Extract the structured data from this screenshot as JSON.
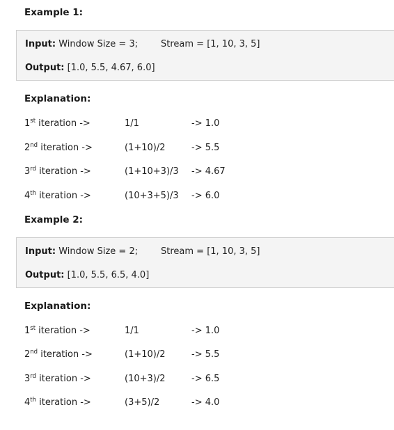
{
  "examples": [
    {
      "title": "Example 1:",
      "input_label": "Input:",
      "input_value": " Window Size = 3;",
      "stream": "Stream = [1, 10, 3, 5]",
      "output_label": "Output:",
      "output_value": " [1.0,   5.5,   4.67,   6.0]",
      "explanation_title": "Explanation:",
      "rows": [
        {
          "ordinal": "1",
          "sup": "st",
          "suffix": " iteration ->",
          "expr": "1/1",
          "result": "-> 1.0"
        },
        {
          "ordinal": "2",
          "sup": "nd",
          "suffix": " iteration ->",
          "expr": "(1+10)/2",
          "result": "-> 5.5"
        },
        {
          "ordinal": "3",
          "sup": "rd",
          "suffix": " iteration ->",
          "expr": "(1+10+3)/3",
          "result": "-> 4.67"
        },
        {
          "ordinal": "4",
          "sup": "th",
          "suffix": " iteration ->",
          "expr": "(10+3+5)/3",
          "result": "-> 6.0"
        }
      ]
    },
    {
      "title": "Example 2:",
      "input_label": "Input:",
      "input_value": " Window Size = 2;",
      "stream": "Stream = [1, 10, 3, 5]",
      "output_label": "Output:",
      "output_value": " [1.0,   5.5,   6.5,   4.0]",
      "explanation_title": "Explanation:",
      "rows": [
        {
          "ordinal": "1",
          "sup": "st",
          "suffix": " iteration ->",
          "expr": "1/1",
          "result": "-> 1.0"
        },
        {
          "ordinal": "2",
          "sup": "nd",
          "suffix": " iteration ->",
          "expr": "(1+10)/2",
          "result": "-> 5.5"
        },
        {
          "ordinal": "3",
          "sup": "rd",
          "suffix": " iteration ->",
          "expr": "(10+3)/2",
          "result": "-> 6.5"
        },
        {
          "ordinal": "4",
          "sup": "th",
          "suffix": " iteration ->",
          "expr": "(3+5)/2",
          "result": "-> 4.0"
        }
      ]
    }
  ]
}
